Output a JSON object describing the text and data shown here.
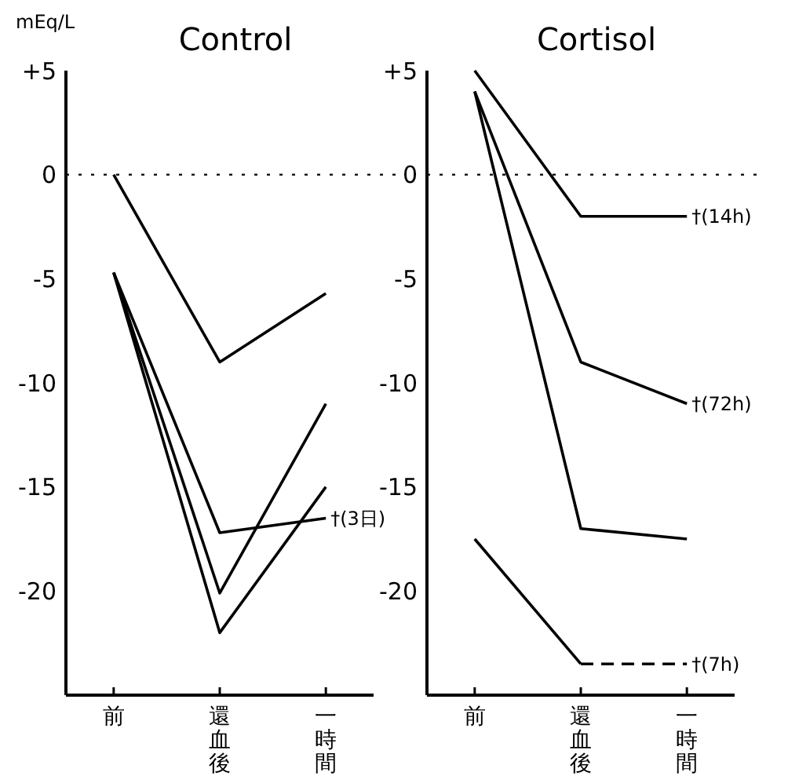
{
  "chart_data": [
    {
      "type": "line",
      "title": "Control",
      "ylabel": "mEq/L",
      "categories": [
        "前",
        "還血後",
        "一時間"
      ],
      "series": [
        {
          "color": "#000000",
          "values": [
            0,
            -9,
            -5.7
          ]
        },
        {
          "color": "#000000",
          "values": [
            -4.7,
            -17.2,
            -16.5
          ]
        },
        {
          "color": "#000000",
          "values": [
            -4.7,
            -20.1,
            -11
          ]
        },
        {
          "color": "#000000",
          "values": [
            -4.7,
            -22,
            -15
          ]
        }
      ],
      "ylim": [
        -25,
        5
      ],
      "yticks": [
        {
          "value": 5,
          "label": "+5"
        },
        0,
        -5,
        -10,
        -15,
        -20
      ],
      "ref_lines": [
        {
          "axis": "y",
          "value": 0,
          "line_style": "dotted",
          "color": "#000000"
        }
      ],
      "annotations": [
        {
          "text": "†(3日)",
          "x": "一時間",
          "y": -16.5
        }
      ]
    },
    {
      "type": "line",
      "title": "Cortisol",
      "categories": [
        "前",
        "還血後",
        "一時間"
      ],
      "series": [
        {
          "color": "#000000",
          "values": [
            5,
            -2,
            -2
          ]
        },
        {
          "color": "#000000",
          "values": [
            4,
            -9,
            -11
          ]
        },
        {
          "color": "#000000",
          "values": [
            4,
            -17,
            -17.5
          ]
        },
        {
          "color": "#000000",
          "values": [
            -17.5,
            -23.5,
            null
          ]
        },
        {
          "color": "#000000",
          "values": [
            null,
            -23.5,
            -23.5
          ],
          "line_style": "dashed"
        }
      ],
      "ylim": [
        -25,
        5
      ],
      "yticks": [
        {
          "value": 5,
          "label": "+5"
        },
        0,
        -5,
        -10,
        -15,
        -20
      ],
      "ref_lines": [
        {
          "axis": "y",
          "value": 0,
          "line_style": "dotted",
          "color": "#000000"
        }
      ],
      "annotations": [
        {
          "text": "†(14h)",
          "x": "一時間",
          "y": -2
        },
        {
          "text": "†(72h)",
          "x": "一時間",
          "y": -11
        },
        {
          "text": "†(7h)",
          "x": "一時間",
          "y": -23.5
        }
      ]
    }
  ]
}
